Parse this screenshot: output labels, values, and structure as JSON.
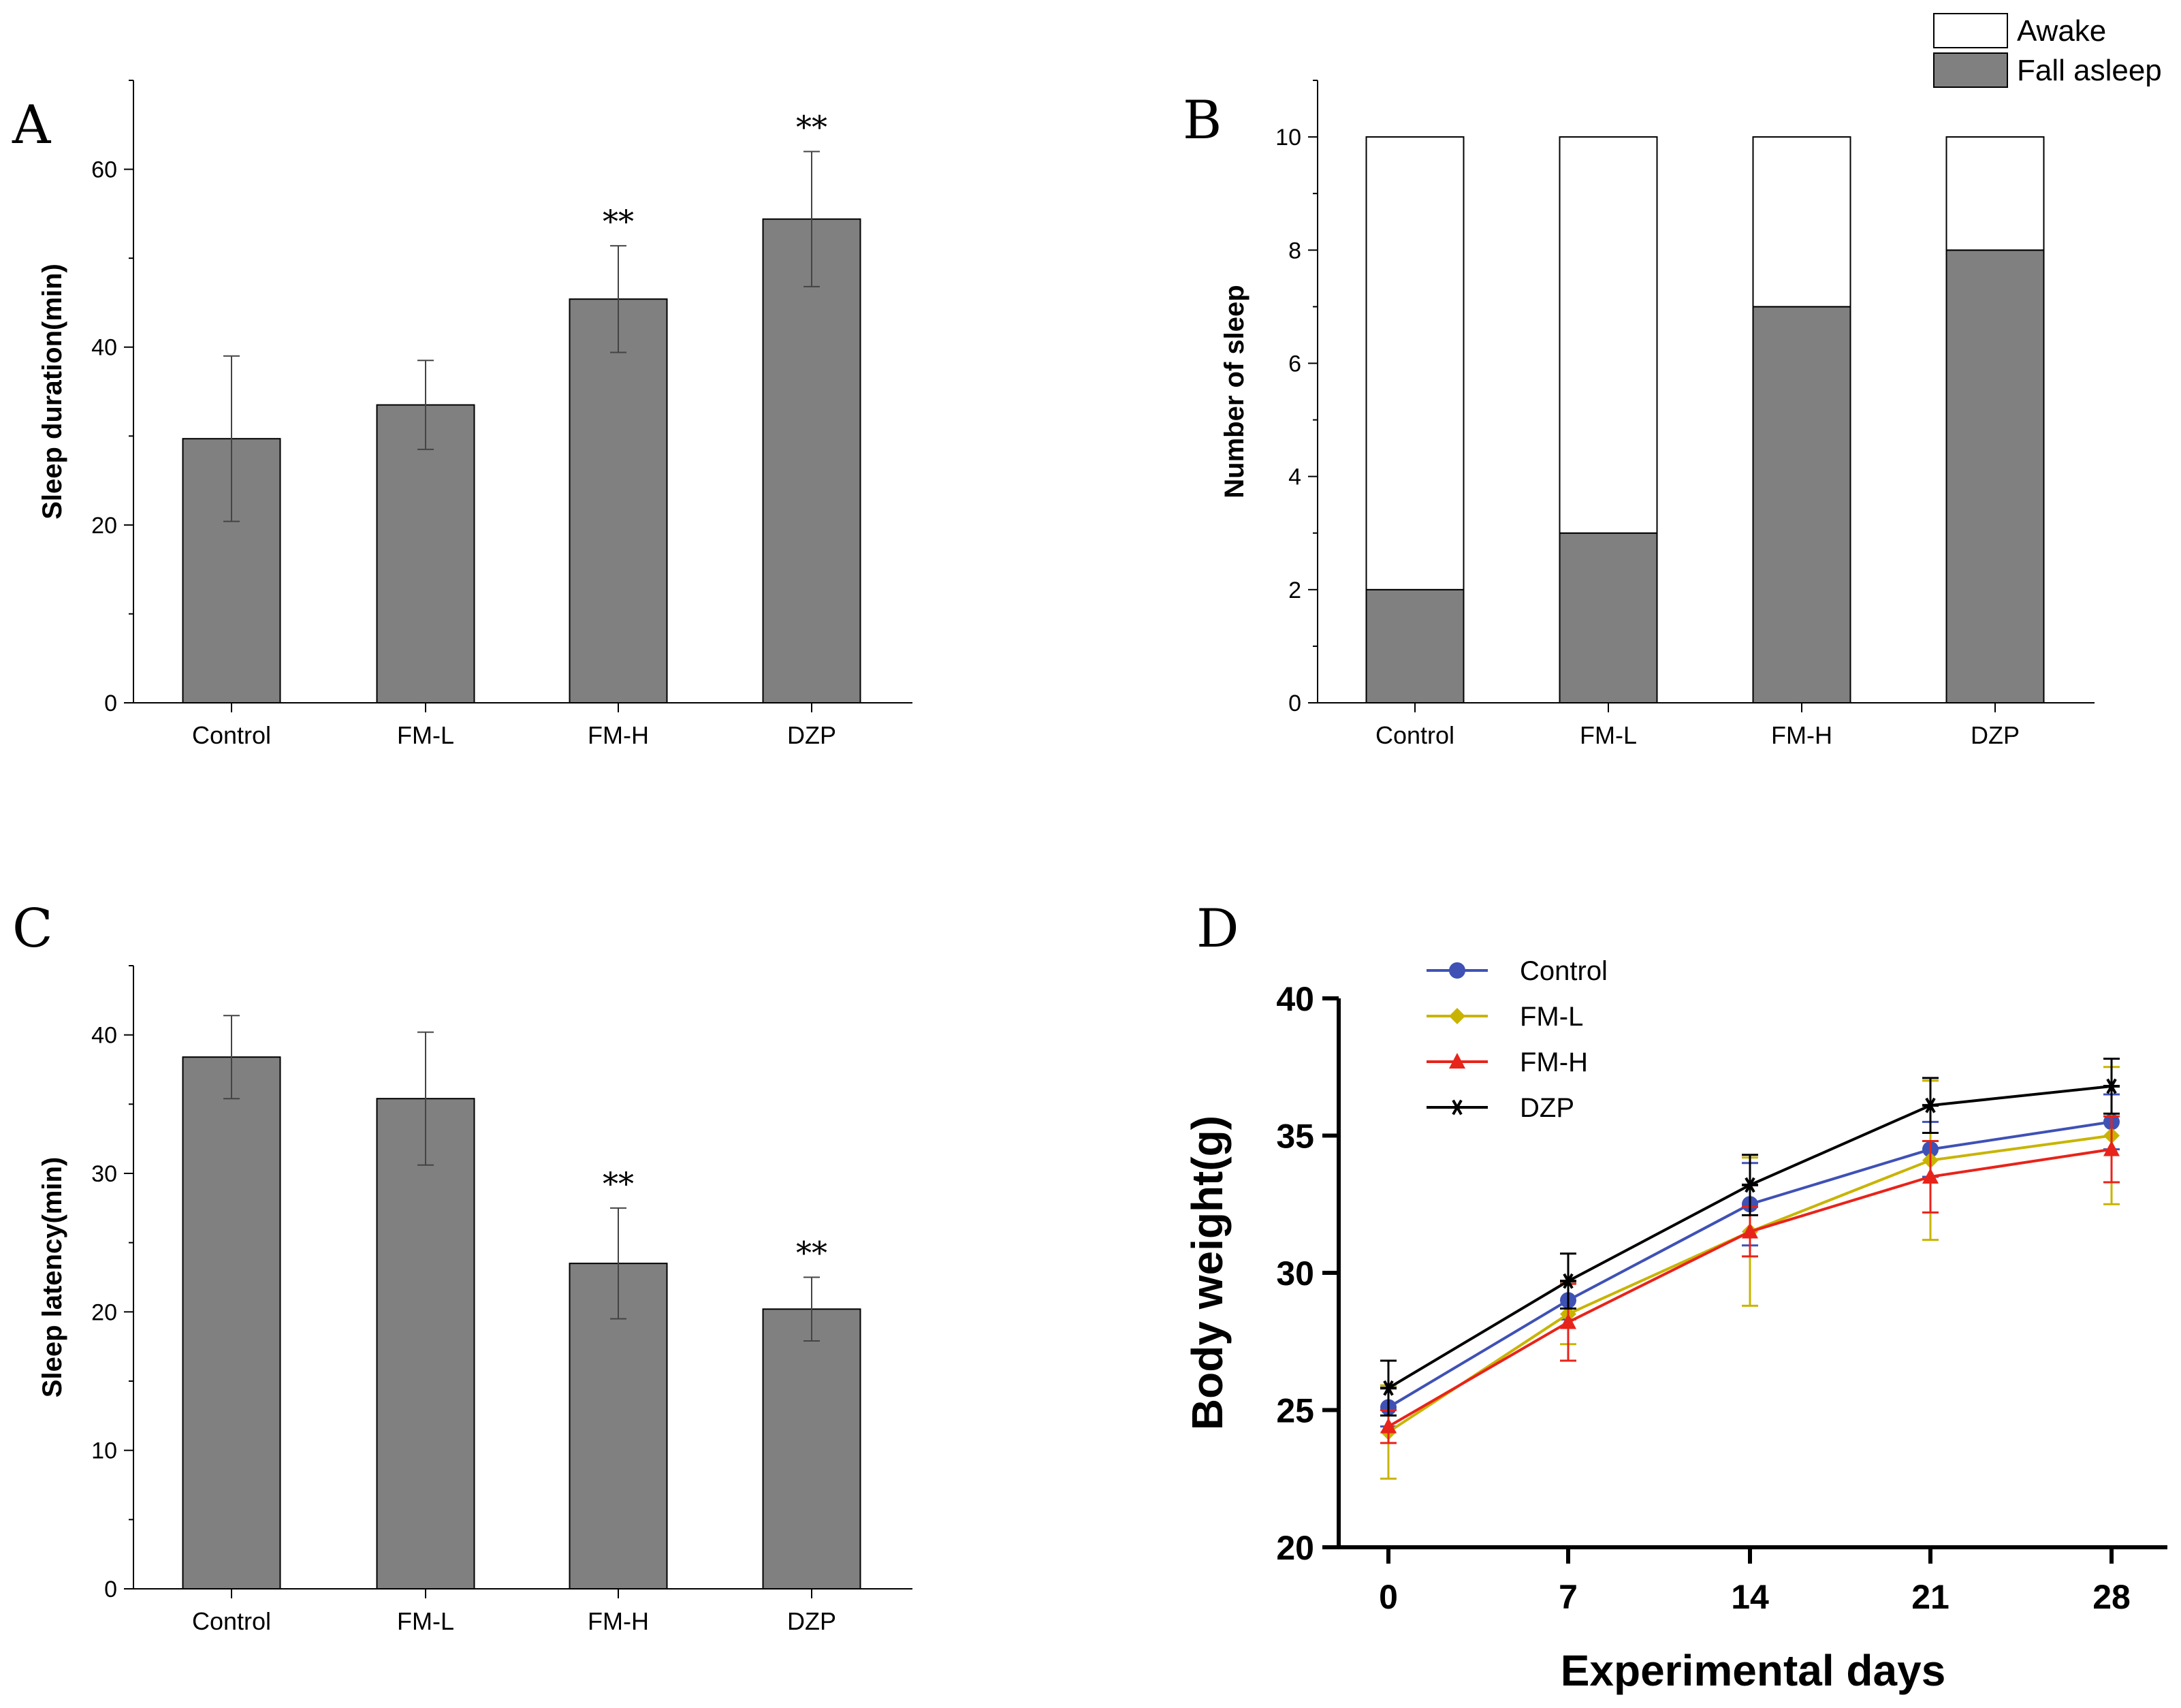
{
  "chart_data": [
    {
      "panel": "A",
      "type": "bar",
      "categories": [
        "Control",
        "FM-L",
        "FM-H",
        "DZP"
      ],
      "values": [
        29.7,
        33.5,
        45.4,
        54.4
      ],
      "errors": [
        9.3,
        5.0,
        6.0,
        7.6
      ],
      "significance": [
        "",
        "",
        "**",
        "**"
      ],
      "ylabel": "Sleep duration(min)",
      "ylim": [
        0,
        70
      ],
      "yticks": [
        0,
        20,
        40,
        60
      ],
      "bar_color": "#808080"
    },
    {
      "panel": "B",
      "type": "bar",
      "stacked": true,
      "categories": [
        "Control",
        "FM-L",
        "FM-H",
        "DZP"
      ],
      "series": [
        {
          "name": "Fall asleep",
          "values": [
            2,
            3,
            7,
            8
          ],
          "color": "#808080"
        },
        {
          "name": "Awake",
          "values": [
            8,
            7,
            3,
            2
          ],
          "color": "#ffffff"
        }
      ],
      "legend": [
        "Awake",
        "Fall asleep"
      ],
      "ylabel": "Number of sleep",
      "ylim": [
        0,
        11
      ],
      "yticks": [
        0,
        2,
        4,
        6,
        8,
        10
      ]
    },
    {
      "panel": "C",
      "type": "bar",
      "categories": [
        "Control",
        "FM-L",
        "FM-H",
        "DZP"
      ],
      "values": [
        38.4,
        35.4,
        23.5,
        20.2
      ],
      "errors": [
        3.0,
        4.8,
        4.0,
        2.3
      ],
      "significance": [
        "",
        "",
        "**",
        "**"
      ],
      "ylabel": "Sleep latency(min)",
      "ylim": [
        0,
        45
      ],
      "yticks": [
        0,
        10,
        20,
        30,
        40
      ],
      "bar_color": "#808080"
    },
    {
      "panel": "D",
      "type": "line",
      "x": [
        0,
        7,
        14,
        21,
        28
      ],
      "xticks": [
        "0",
        "7",
        "14",
        "21",
        "28"
      ],
      "xlabel": "Experimental days",
      "ylabel": "Body weight(g)",
      "ylim": [
        20,
        40
      ],
      "yticks": [
        20,
        25,
        30,
        35,
        40
      ],
      "series": [
        {
          "name": "Control",
          "values": [
            25.1,
            29.0,
            32.5,
            34.5,
            35.5
          ],
          "errors": [
            0.7,
            0.7,
            1.5,
            1.0,
            1.0
          ],
          "color": "#3f51b5",
          "marker": "circle"
        },
        {
          "name": "FM-L",
          "values": [
            24.2,
            28.5,
            31.5,
            34.1,
            35.0
          ],
          "errors": [
            1.7,
            1.1,
            2.7,
            2.9,
            2.5
          ],
          "color": "#c8b400",
          "marker": "diamond"
        },
        {
          "name": "FM-H",
          "values": [
            24.4,
            28.2,
            31.5,
            33.5,
            34.5
          ],
          "errors": [
            0.6,
            1.4,
            0.9,
            1.3,
            1.2
          ],
          "color": "#e8231a",
          "marker": "triangle"
        },
        {
          "name": "DZP",
          "values": [
            25.8,
            29.7,
            33.2,
            36.1,
            36.8
          ],
          "errors": [
            1.0,
            1.0,
            1.1,
            1.0,
            1.0
          ],
          "color": "#000000",
          "marker": "star"
        }
      ]
    }
  ]
}
